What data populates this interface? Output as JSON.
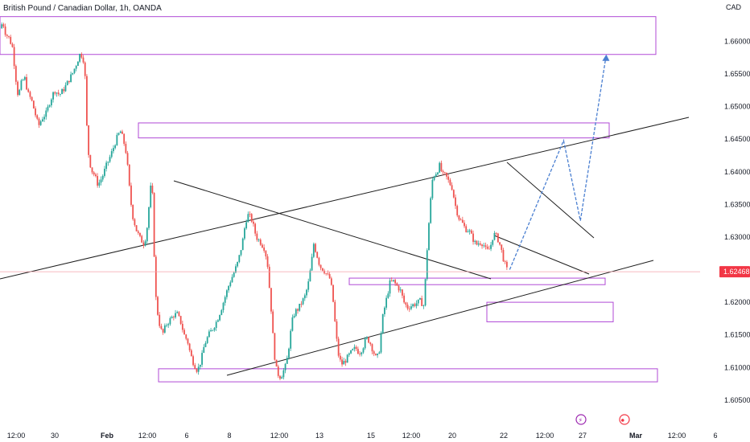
{
  "header": {
    "title": "British Pound / Canadian Dollar, 1h, OANDA",
    "currency": "CAD"
  },
  "colors": {
    "up": "#26a69a",
    "down": "#ef5350",
    "zone": "#b04ad6",
    "trendline": "#1e1e1e",
    "projection": "#4a7fd1",
    "last_price": "#f23645",
    "event_icon_1": "#9c27b0",
    "event_icon_2": "#f23645"
  },
  "chart_data": {
    "type": "candlestick",
    "symbol": "GBPCAD",
    "timeframe": "1h",
    "last_price": "1.62468",
    "y_ticks": [
      "1.66000",
      "1.65500",
      "1.65000",
      "1.64500",
      "1.64000",
      "1.63500",
      "1.63000",
      "1.62500",
      "1.62000",
      "1.61500",
      "1.61000",
      "1.60500"
    ],
    "x_ticks": [
      "12:00",
      "30",
      "Feb",
      "12:00",
      "6",
      "8",
      "12:00",
      "13",
      "15",
      "12:00",
      "20",
      "22",
      "12:00",
      "27",
      "Mar",
      "12:00",
      "6"
    ],
    "ylim": [
      1.6035,
      1.6645
    ],
    "price_path": [
      [
        0,
        1.662
      ],
      [
        0.004,
        1.663
      ],
      [
        0.008,
        1.6612
      ],
      [
        0.013,
        1.6605
      ],
      [
        0.018,
        1.659
      ],
      [
        0.022,
        1.6548
      ],
      [
        0.026,
        1.6515
      ],
      [
        0.03,
        1.6535
      ],
      [
        0.035,
        1.6545
      ],
      [
        0.04,
        1.652
      ],
      [
        0.045,
        1.651
      ],
      [
        0.05,
        1.649
      ],
      [
        0.055,
        1.647
      ],
      [
        0.06,
        1.6482
      ],
      [
        0.066,
        1.649
      ],
      [
        0.072,
        1.651
      ],
      [
        0.078,
        1.6525
      ],
      [
        0.085,
        1.6518
      ],
      [
        0.092,
        1.6528
      ],
      [
        0.098,
        1.654
      ],
      [
        0.104,
        1.6552
      ],
      [
        0.11,
        1.6568
      ],
      [
        0.114,
        1.658
      ],
      [
        0.118,
        1.6578
      ],
      [
        0.121,
        1.656
      ],
      [
        0.124,
        1.647
      ],
      [
        0.127,
        1.642
      ],
      [
        0.131,
        1.6402
      ],
      [
        0.135,
        1.6395
      ],
      [
        0.14,
        1.638
      ],
      [
        0.146,
        1.6392
      ],
      [
        0.152,
        1.641
      ],
      [
        0.158,
        1.6425
      ],
      [
        0.163,
        1.644
      ],
      [
        0.168,
        1.6455
      ],
      [
        0.172,
        1.6462
      ],
      [
        0.176,
        1.645
      ],
      [
        0.18,
        1.643
      ],
      [
        0.183,
        1.64
      ],
      [
        0.186,
        1.636
      ],
      [
        0.19,
        1.633
      ],
      [
        0.195,
        1.631
      ],
      [
        0.2,
        1.6298
      ],
      [
        0.205,
        1.629
      ],
      [
        0.209,
        1.6302
      ],
      [
        0.213,
        1.635
      ],
      [
        0.216,
        1.6385
      ],
      [
        0.218,
        1.636
      ],
      [
        0.22,
        1.628
      ],
      [
        0.223,
        1.62
      ],
      [
        0.227,
        1.617
      ],
      [
        0.232,
        1.615
      ],
      [
        0.237,
        1.6165
      ],
      [
        0.242,
        1.6172
      ],
      [
        0.248,
        1.618
      ],
      [
        0.253,
        1.6182
      ],
      [
        0.258,
        1.617
      ],
      [
        0.263,
        1.615
      ],
      [
        0.268,
        1.614
      ],
      [
        0.272,
        1.612
      ],
      [
        0.277,
        1.6105
      ],
      [
        0.282,
        1.6095
      ],
      [
        0.287,
        1.611
      ],
      [
        0.292,
        1.6135
      ],
      [
        0.298,
        1.615
      ],
      [
        0.304,
        1.616
      ],
      [
        0.31,
        1.6172
      ],
      [
        0.316,
        1.619
      ],
      [
        0.322,
        1.621
      ],
      [
        0.328,
        1.623
      ],
      [
        0.334,
        1.6245
      ],
      [
        0.34,
        1.6262
      ],
      [
        0.346,
        1.629
      ],
      [
        0.351,
        1.6325
      ],
      [
        0.355,
        1.6335
      ],
      [
        0.36,
        1.6325
      ],
      [
        0.366,
        1.63
      ],
      [
        0.372,
        1.6292
      ],
      [
        0.378,
        1.6282
      ],
      [
        0.382,
        1.626
      ],
      [
        0.385,
        1.622
      ],
      [
        0.388,
        1.618
      ],
      [
        0.391,
        1.613
      ],
      [
        0.394,
        1.61
      ],
      [
        0.397,
        1.609
      ],
      [
        0.401,
        1.6085
      ],
      [
        0.405,
        1.6095
      ],
      [
        0.409,
        1.6105
      ],
      [
        0.413,
        1.6135
      ],
      [
        0.417,
        1.617
      ],
      [
        0.421,
        1.6185
      ],
      [
        0.426,
        1.619
      ],
      [
        0.431,
        1.62
      ],
      [
        0.436,
        1.621
      ],
      [
        0.441,
        1.6232
      ],
      [
        0.445,
        1.6262
      ],
      [
        0.448,
        1.629
      ],
      [
        0.452,
        1.6275
      ],
      [
        0.457,
        1.6255
      ],
      [
        0.462,
        1.625
      ],
      [
        0.467,
        1.6242
      ],
      [
        0.472,
        1.6235
      ],
      [
        0.476,
        1.62
      ],
      [
        0.48,
        1.615
      ],
      [
        0.484,
        1.6115
      ],
      [
        0.488,
        1.6105
      ],
      [
        0.493,
        1.611
      ],
      [
        0.498,
        1.6118
      ],
      [
        0.503,
        1.6125
      ],
      [
        0.508,
        1.613
      ],
      [
        0.513,
        1.6122
      ],
      [
        0.518,
        1.613
      ],
      [
        0.523,
        1.6145
      ],
      [
        0.528,
        1.614
      ],
      [
        0.533,
        1.6125
      ],
      [
        0.538,
        1.6112
      ],
      [
        0.542,
        1.6128
      ],
      [
        0.547,
        1.618
      ],
      [
        0.552,
        1.6205
      ],
      [
        0.557,
        1.623
      ],
      [
        0.562,
        1.6232
      ],
      [
        0.567,
        1.6225
      ],
      [
        0.572,
        1.6218
      ],
      [
        0.577,
        1.62
      ],
      [
        0.582,
        1.6192
      ],
      [
        0.588,
        1.6195
      ],
      [
        0.594,
        1.6198
      ],
      [
        0.6,
        1.6202
      ],
      [
        0.605,
        1.6195
      ],
      [
        0.608,
        1.624
      ],
      [
        0.611,
        1.63
      ],
      [
        0.614,
        1.634
      ],
      [
        0.617,
        1.6385
      ],
      [
        0.62,
        1.6395
      ],
      [
        0.624,
        1.64
      ],
      [
        0.628,
        1.641
      ],
      [
        0.632,
        1.6395
      ],
      [
        0.636,
        1.6395
      ],
      [
        0.641,
        1.6385
      ],
      [
        0.646,
        1.6375
      ],
      [
        0.65,
        1.635
      ],
      [
        0.655,
        1.633
      ],
      [
        0.66,
        1.6322
      ],
      [
        0.665,
        1.6312
      ],
      [
        0.67,
        1.631
      ],
      [
        0.675,
        1.6298
      ],
      [
        0.68,
        1.6288
      ],
      [
        0.685,
        1.6292
      ],
      [
        0.69,
        1.629
      ],
      [
        0.695,
        1.6278
      ],
      [
        0.7,
        1.6283
      ],
      [
        0.705,
        1.6305
      ],
      [
        0.71,
        1.63
      ],
      [
        0.715,
        1.6285
      ],
      [
        0.72,
        1.6262
      ],
      [
        0.724,
        1.625
      ]
    ],
    "zones": [
      {
        "label": "upper supply zone",
        "from": 1.6638,
        "to": 1.658
      },
      {
        "label": "mid supply zone",
        "from": 1.6475,
        "to": 1.6452
      },
      {
        "label": "mid demand zone",
        "from": 1.6237,
        "to": 1.6227
      },
      {
        "label": "lower demand zone",
        "from": 1.62,
        "to": 1.617
      },
      {
        "label": "bottom demand zone",
        "from": 1.6098,
        "to": 1.6078
      }
    ],
    "projection_path": [
      [
        0.728,
        1.625
      ],
      [
        0.805,
        1.6448
      ],
      [
        0.829,
        1.6325
      ],
      [
        0.866,
        1.658
      ]
    ]
  },
  "timeline": {
    "event_1": "⚡",
    "event_2": "⏺"
  }
}
